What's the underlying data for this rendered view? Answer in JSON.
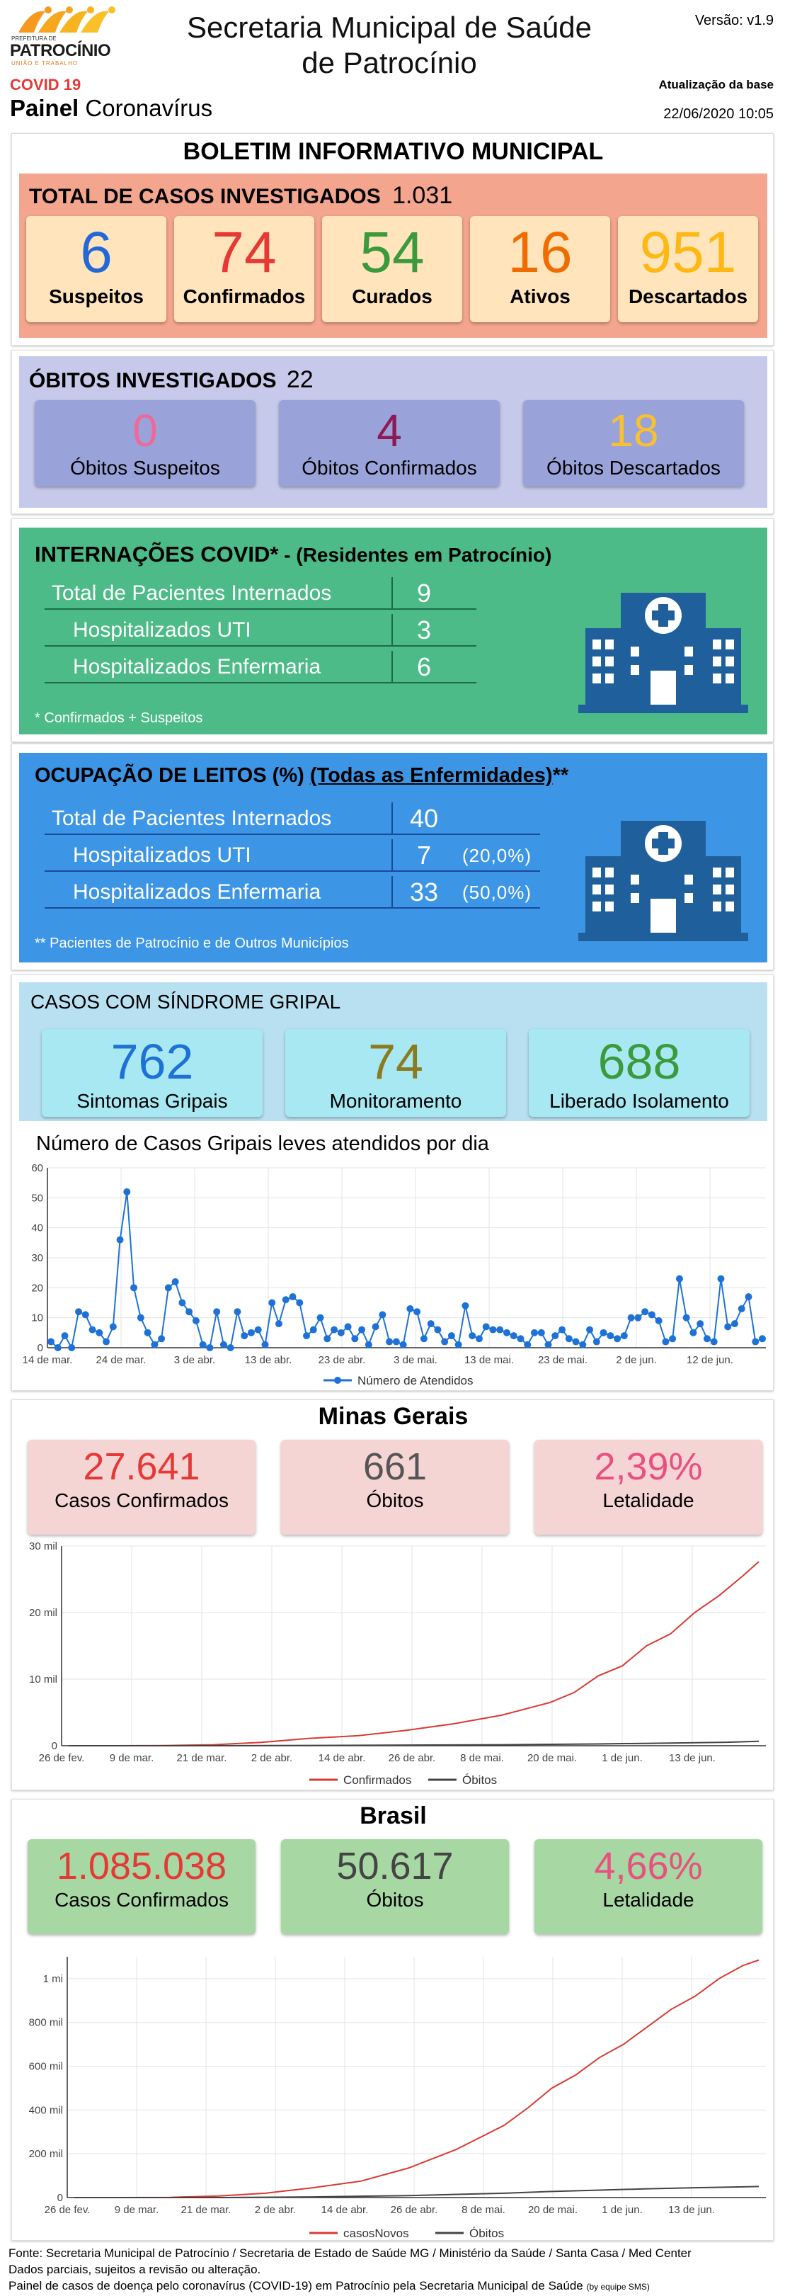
{
  "header": {
    "logo_top": "PREFEITURA DE",
    "logo_name": "PATROCÍNIO",
    "logo_slogan": "UNIÃO E TRABALHO",
    "covid_tag": "COVID 19",
    "panel_bold": "Painel",
    "panel_rest": "Coronavírus",
    "title_line1": "Secretaria Municipal de Saúde",
    "title_line2": "de Patrocínio",
    "version": "Versão: v1.9",
    "update_label": "Atualização da base",
    "update_date": "22/06/2020 10:05"
  },
  "bulletin": {
    "title": "BOLETIM INFORMATIVO MUNICIPAL",
    "cases_label": "TOTAL DE CASOS INVESTIGADOS",
    "cases_total": "1.031",
    "cards": [
      {
        "value": "6",
        "label": "Suspeitos",
        "color": "#2468d8"
      },
      {
        "value": "74",
        "label": "Confirmados",
        "color": "#e53935"
      },
      {
        "value": "54",
        "label": "Curados",
        "color": "#3a9a3c"
      },
      {
        "value": "16",
        "label": "Ativos",
        "color": "#ef6c00"
      },
      {
        "value": "951",
        "label": "Descartados",
        "color": "#fdb813"
      }
    ]
  },
  "deaths": {
    "label": "ÓBITOS INVESTIGADOS",
    "total": "22",
    "cards": [
      {
        "value": "0",
        "label": "Óbitos Suspeitos",
        "color": "#ec6a9a"
      },
      {
        "value": "4",
        "label": "Óbitos Confirmados",
        "color": "#8e1a55"
      },
      {
        "value": "18",
        "label": "Óbitos Descartados",
        "color": "#fbc02d"
      }
    ]
  },
  "hospital": {
    "title_bold": "INTERNAÇÕES COVID*",
    "title_rest": " - (Residentes em Patrocínio)",
    "rows": [
      {
        "label": "Total de Pacientes Internados",
        "value": "9"
      },
      {
        "label": "Hospitalizados UTI",
        "value": "3"
      },
      {
        "label": "Hospitalizados Enfermaria",
        "value": "6"
      }
    ],
    "note": "* Confirmados + Suspeitos",
    "icon": "hospital-icon"
  },
  "beds": {
    "title_bold": "OCUPAÇÃO DE LEITOS (%)",
    "title_link": "(Todas as Enfermidades)",
    "title_suffix": "**",
    "rows": [
      {
        "label": "Total de Pacientes Internados",
        "value": "40",
        "pct": ""
      },
      {
        "label": "Hospitalizados UTI",
        "value": "7",
        "pct": "(20,0%)"
      },
      {
        "label": "Hospitalizados Enfermaria",
        "value": "33",
        "pct": "(50,0%)"
      }
    ],
    "note": "** Pacientes de Patrocínio e de Outros Municípios",
    "icon": "hospital-icon"
  },
  "flu": {
    "title": "CASOS COM SÍNDROME GRIPAL",
    "cards": [
      {
        "value": "762",
        "label": "Sintomas Gripais",
        "color": "#1e72d6"
      },
      {
        "value": "74",
        "label": "Monitoramento",
        "color": "#8b7a1e"
      },
      {
        "value": "688",
        "label": "Liberado Isolamento",
        "color": "#3a9a3c"
      }
    ]
  },
  "mg": {
    "title": "Minas Gerais",
    "cards": [
      {
        "value": "27.641",
        "label": "Casos Confirmados",
        "color": "#e53935"
      },
      {
        "value": "661",
        "label": "Óbitos",
        "color": "#555555"
      },
      {
        "value": "2,39%",
        "label": "Letalidade",
        "color": "#e8507f"
      }
    ]
  },
  "br": {
    "title": "Brasil",
    "cards": [
      {
        "value": "1.085.038",
        "label": "Casos Confirmados",
        "color": "#e53935"
      },
      {
        "value": "50.617",
        "label": "Óbitos",
        "color": "#444444"
      },
      {
        "value": "4,66%",
        "label": "Letalidade",
        "color": "#e8507f"
      }
    ]
  },
  "footer": {
    "line1": "Fonte: Secretaria Municipal de Patrocínio / Secretaria de Estado de Saúde MG / Ministério da Saúde / Santa Casa / Med Center",
    "line2": "Dados parciais, sujeitos a revisão ou alteração.",
    "line3": "Painel de casos de doença pelo coronavírus (COVID-19) em Patrocínio pela Secretaria Municipal de Saúde",
    "line3_small": "(by equipe SMS)"
  },
  "chart_data": [
    {
      "type": "line",
      "title": "Número de Casos Gripais leves atendidos por dia",
      "x_tick_labels": [
        "14 de mar.",
        "24 de mar.",
        "3 de abr.",
        "13 de abr.",
        "23 de abr.",
        "3 de mai.",
        "13 de mai.",
        "23 de mai.",
        "2 de jun.",
        "12 de jun."
      ],
      "ylim": [
        0,
        60
      ],
      "y_ticks": [
        "0",
        "10",
        "20",
        "30",
        "40",
        "50",
        "60"
      ],
      "grid": true,
      "legend_position": "bottom",
      "series": [
        {
          "name": "Número de Atendidos",
          "color": "#1e72d6",
          "values": [
            2,
            0,
            4,
            0,
            12,
            11,
            6,
            5,
            2,
            7,
            36,
            52,
            20,
            10,
            5,
            1,
            3,
            20,
            22,
            15,
            12,
            9,
            1,
            0,
            12,
            1,
            0,
            12,
            4,
            5,
            6,
            1,
            15,
            8,
            16,
            17,
            15,
            4,
            6,
            10,
            3,
            6,
            5,
            7,
            3,
            6,
            1,
            7,
            11,
            2,
            2,
            1,
            13,
            12,
            3,
            8,
            6,
            2,
            4,
            1,
            14,
            4,
            3,
            7,
            6,
            6,
            5,
            4,
            3,
            1,
            5,
            5,
            1,
            4,
            6,
            3,
            2,
            1,
            6,
            2,
            5,
            4,
            3,
            4,
            10,
            10,
            12,
            11,
            9,
            2,
            3,
            23,
            10,
            5,
            8,
            3,
            2,
            23,
            7,
            8,
            13,
            17,
            2,
            3
          ]
        }
      ]
    },
    {
      "type": "line",
      "title": "",
      "x_tick_labels": [
        "26 de fev.",
        "9 de mar.",
        "21 de mar.",
        "2 de abr.",
        "14 de abr.",
        "26 de abr.",
        "8 de mai.",
        "20 de mai.",
        "1 de jun.",
        "13 de jun."
      ],
      "ylim": [
        0,
        30000
      ],
      "y_ticks": [
        "0",
        "10 mil",
        "20 mil",
        "30 mil"
      ],
      "grid": true,
      "legend_position": "bottom",
      "series": [
        {
          "name": "Confirmados",
          "color": "#d93a32",
          "points": [
            [
              0,
              0
            ],
            [
              12,
              0
            ],
            [
              24,
              20
            ],
            [
              36,
              150
            ],
            [
              48,
              500
            ],
            [
              60,
              1100
            ],
            [
              72,
              1500
            ],
            [
              84,
              2300
            ],
            [
              96,
              3300
            ],
            [
              108,
              4600
            ],
            [
              120,
              6500
            ],
            [
              126,
              8000
            ],
            [
              132,
              10500
            ],
            [
              138,
              12000
            ],
            [
              144,
              15000
            ],
            [
              150,
              16800
            ],
            [
              156,
              20000
            ],
            [
              162,
              22500
            ],
            [
              168,
              25500
            ],
            [
              172,
              27641
            ]
          ]
        },
        {
          "name": "Óbitos",
          "color": "#444444",
          "points": [
            [
              0,
              0
            ],
            [
              36,
              5
            ],
            [
              60,
              40
            ],
            [
              84,
              90
            ],
            [
              108,
              150
            ],
            [
              132,
              270
            ],
            [
              150,
              400
            ],
            [
              164,
              520
            ],
            [
              172,
              661
            ]
          ]
        }
      ]
    },
    {
      "type": "line",
      "title": "",
      "x_tick_labels": [
        "26 de fev.",
        "9 de mar.",
        "21 de mar.",
        "2 de abr.",
        "14 de abr.",
        "26 de abr.",
        "8 de mai.",
        "20 de mai.",
        "1 de jun.",
        "13 de jun."
      ],
      "ylim": [
        0,
        1100000
      ],
      "y_ticks": [
        "0",
        "200 mil",
        "400 mil",
        "600 mil",
        "800 mil",
        "1 mi"
      ],
      "grid": true,
      "legend_position": "bottom",
      "series": [
        {
          "name": "casosNovos",
          "color": "#d93a32",
          "points": [
            [
              0,
              0
            ],
            [
              12,
              0
            ],
            [
              24,
              1000
            ],
            [
              36,
              7000
            ],
            [
              48,
              20000
            ],
            [
              60,
              45000
            ],
            [
              72,
              75000
            ],
            [
              84,
              135000
            ],
            [
              96,
              220000
            ],
            [
              108,
              330000
            ],
            [
              114,
              410000
            ],
            [
              120,
              500000
            ],
            [
              126,
              560000
            ],
            [
              132,
              640000
            ],
            [
              138,
              700000
            ],
            [
              144,
              780000
            ],
            [
              150,
              860000
            ],
            [
              156,
              920000
            ],
            [
              162,
              1000000
            ],
            [
              168,
              1060000
            ],
            [
              172,
              1085038
            ]
          ]
        },
        {
          "name": "Óbitos",
          "color": "#444444",
          "points": [
            [
              0,
              0
            ],
            [
              36,
              200
            ],
            [
              60,
              3000
            ],
            [
              84,
              9000
            ],
            [
              108,
              20000
            ],
            [
              120,
              28000
            ],
            [
              132,
              34000
            ],
            [
              144,
              40000
            ],
            [
              156,
              45000
            ],
            [
              168,
              49000
            ],
            [
              172,
              50617
            ]
          ]
        }
      ]
    }
  ]
}
